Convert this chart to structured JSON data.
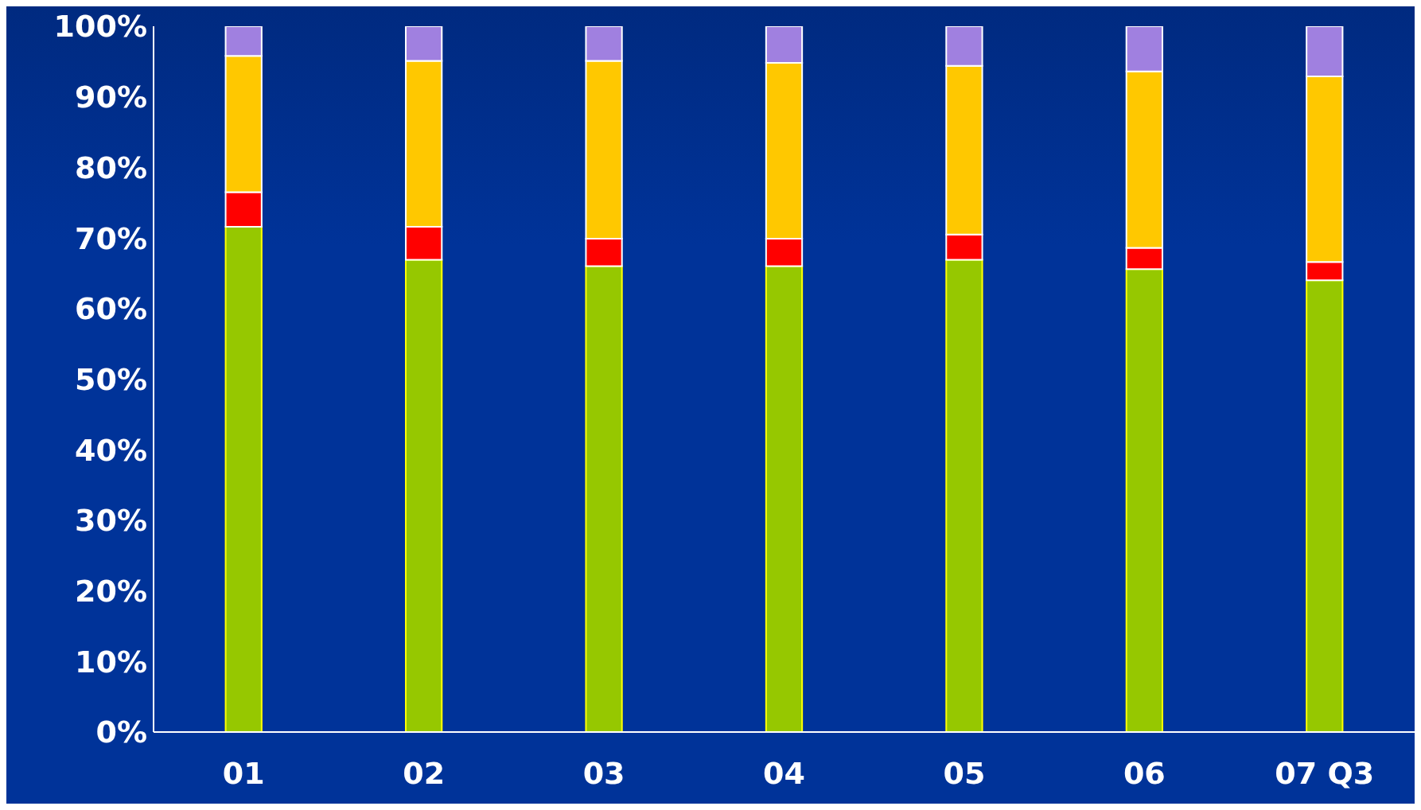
{
  "chart_data": {
    "type": "bar",
    "stacked": true,
    "categories": [
      "01",
      "02",
      "03",
      "04",
      "05",
      "06",
      "07 Q3"
    ],
    "series": [
      {
        "color": "#96c800",
        "values": [
          71.6,
          66.9,
          66.0,
          66.0,
          66.9,
          65.6,
          64.0
        ]
      },
      {
        "color": "#ff0000",
        "values": [
          4.9,
          4.7,
          3.9,
          3.9,
          3.6,
          3.0,
          2.6
        ]
      },
      {
        "color": "#ffc800",
        "values": [
          19.3,
          23.5,
          25.2,
          24.9,
          23.9,
          25.0,
          26.3
        ]
      },
      {
        "color": "#a080e0",
        "values": [
          4.2,
          4.9,
          4.9,
          5.2,
          5.6,
          6.4,
          7.1
        ]
      }
    ],
    "ylim": [
      0,
      100
    ],
    "yticks": [
      {
        "value": 0,
        "label": "0%"
      },
      {
        "value": 10,
        "label": "10%"
      },
      {
        "value": 20,
        "label": "20%"
      },
      {
        "value": 30,
        "label": "30%"
      },
      {
        "value": 40,
        "label": "40%"
      },
      {
        "value": 50,
        "label": "50%"
      },
      {
        "value": 60,
        "label": "60%"
      },
      {
        "value": 70,
        "label": "70%"
      },
      {
        "value": 80,
        "label": "80%"
      },
      {
        "value": 90,
        "label": "90%"
      },
      {
        "value": 100,
        "label": "100%"
      }
    ],
    "grid": false,
    "legend": false
  }
}
